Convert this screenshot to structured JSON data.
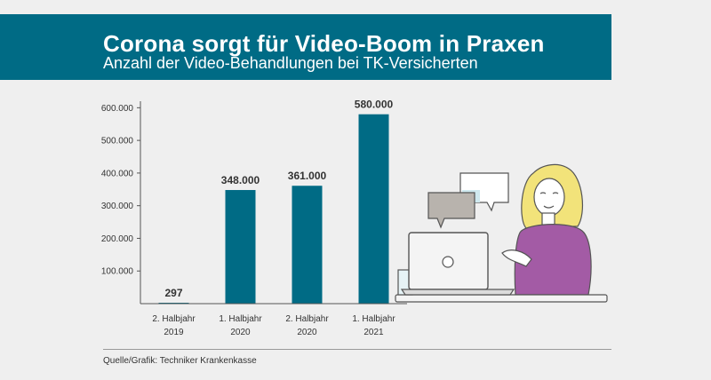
{
  "header": {
    "title": "Corona sorgt für Video-Boom in Praxen",
    "subtitle": "Anzahl der Video-Behandlungen bei TK-Versicherten"
  },
  "chart_data": {
    "type": "bar",
    "categories": [
      [
        "2. Halbjahr",
        "2019"
      ],
      [
        "1. Halbjahr",
        "2020"
      ],
      [
        "2. Halbjahr",
        "2020"
      ],
      [
        "1. Halbjahr",
        "2021"
      ]
    ],
    "values": [
      297,
      348000,
      361000,
      580000
    ],
    "value_labels": [
      "297",
      "348.000",
      "361.000",
      "580.000"
    ],
    "yticks": [
      100000,
      200000,
      300000,
      400000,
      500000,
      600000
    ],
    "ytick_labels": [
      "100.000",
      "200.000",
      "300.000",
      "400.000",
      "500.000",
      "600.000"
    ],
    "ylim": [
      0,
      620000
    ],
    "grid": false,
    "bar_color": "#006b85"
  },
  "footer": {
    "source": "Quelle/Grafik: Techniker Krankenkasse"
  },
  "colors": {
    "banner": "#006b85",
    "background": "#efefef"
  }
}
